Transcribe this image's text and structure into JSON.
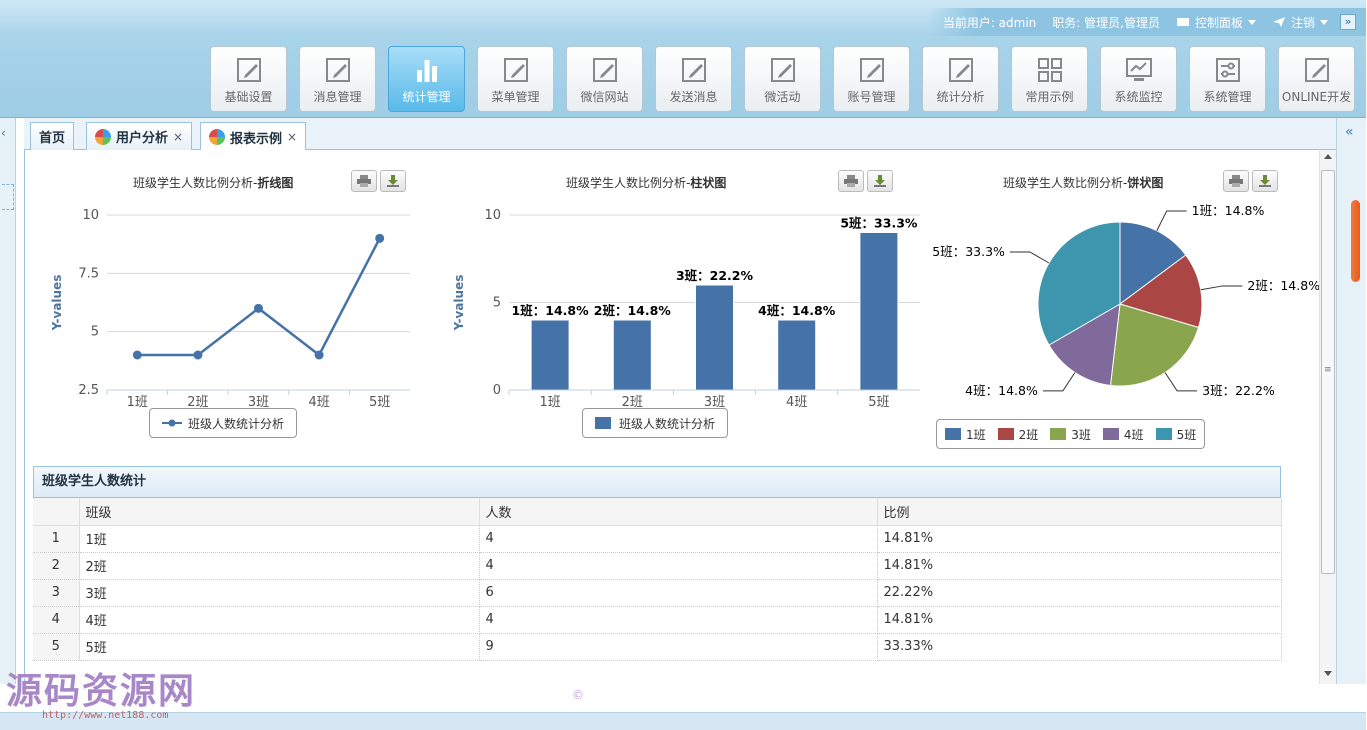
{
  "topbar": {
    "current_user": "当前用户: admin",
    "role": "职务: 管理员,管理员",
    "control_panel": "控制面板",
    "logout": "注销",
    "collapse_glyph": "»"
  },
  "nav": {
    "items": [
      {
        "label": "基础设置",
        "icon": "edit-icon",
        "active": false
      },
      {
        "label": "消息管理",
        "icon": "edit-icon",
        "active": false
      },
      {
        "label": "统计管理",
        "icon": "bar-chart-icon",
        "active": true
      },
      {
        "label": "菜单管理",
        "icon": "edit-icon",
        "active": false
      },
      {
        "label": "微信网站",
        "icon": "edit-icon",
        "active": false
      },
      {
        "label": "发送消息",
        "icon": "edit-icon",
        "active": false
      },
      {
        "label": "微活动",
        "icon": "edit-icon",
        "active": false
      },
      {
        "label": "账号管理",
        "icon": "edit-icon",
        "active": false
      },
      {
        "label": "统计分析",
        "icon": "edit-icon",
        "active": false
      },
      {
        "label": "常用示例",
        "icon": "grid-icon",
        "active": false
      },
      {
        "label": "系统监控",
        "icon": "monitor-icon",
        "active": false
      },
      {
        "label": "系统管理",
        "icon": "settings-panel-icon",
        "active": false
      },
      {
        "label": "ONLINE开发",
        "icon": "edit-icon",
        "active": false
      }
    ]
  },
  "tabs": [
    {
      "label": "首页",
      "closable": false,
      "active": false
    },
    {
      "label": "用户分析",
      "closable": true,
      "active": false
    },
    {
      "label": "报表示例",
      "closable": true,
      "active": true
    }
  ],
  "colors": {
    "series_blue": "#4572A7",
    "pie": [
      "#4572A7",
      "#AA4643",
      "#89A54E",
      "#80699B",
      "#3D96AE"
    ]
  },
  "charts": {
    "line": {
      "title_prefix": "班级学生人数比例分析-",
      "title_type": "折线图"
    },
    "bar": {
      "title_prefix": "班级学生人数比例分析-",
      "title_type": "柱状图"
    },
    "pie": {
      "title_prefix": "班级学生人数比例分析-",
      "title_type": "饼状图"
    }
  },
  "chart_data": [
    {
      "type": "line",
      "title": "班级学生人数比例分析-折线图",
      "categories": [
        "1班",
        "2班",
        "3班",
        "4班",
        "5班"
      ],
      "series": [
        {
          "name": "班级人数统计分析",
          "values": [
            4,
            4,
            6,
            4,
            9
          ]
        }
      ],
      "ylabel": "Y-values",
      "yticks": [
        "2.5",
        "5",
        "7.5",
        "10"
      ],
      "ylim": [
        2.5,
        10
      ],
      "grid": true,
      "legend": "bottom-center"
    },
    {
      "type": "bar",
      "title": "班级学生人数比例分析-柱状图",
      "categories": [
        "1班",
        "2班",
        "3班",
        "4班",
        "5班"
      ],
      "series": [
        {
          "name": "班级人数统计分析",
          "values": [
            4,
            4,
            6,
            4,
            9
          ]
        }
      ],
      "data_labels": [
        "1班：14.8%",
        "2班：14.8%",
        "3班：22.2%",
        "4班：14.8%",
        "5班：33.3%"
      ],
      "ylabel": "Y-values",
      "yticks": [
        "0",
        "5",
        "10"
      ],
      "ylim": [
        0,
        10
      ],
      "grid": true,
      "legend": "bottom-center"
    },
    {
      "type": "pie",
      "title": "班级学生人数比例分析-饼状图",
      "categories": [
        "1班",
        "2班",
        "3班",
        "4班",
        "5班"
      ],
      "values": [
        14.8,
        14.8,
        22.2,
        14.8,
        33.3
      ],
      "data_labels": [
        "1班：14.8%",
        "2班：14.8%",
        "3班：22.2%",
        "4班：14.8%",
        "5班：33.3%"
      ],
      "legend": "bottom-center"
    }
  ],
  "table": {
    "title": "班级学生人数统计",
    "columns": [
      "班级",
      "人数",
      "比例"
    ],
    "rows": [
      {
        "n": "1",
        "cls": "1班",
        "count": "4",
        "ratio": "14.81%"
      },
      {
        "n": "2",
        "cls": "2班",
        "count": "4",
        "ratio": "14.81%"
      },
      {
        "n": "3",
        "cls": "3班",
        "count": "6",
        "ratio": "22.22%"
      },
      {
        "n": "4",
        "cls": "4班",
        "count": "4",
        "ratio": "14.81%"
      },
      {
        "n": "5",
        "cls": "5班",
        "count": "9",
        "ratio": "33.33%"
      }
    ]
  },
  "footer": {
    "copyright": "©"
  },
  "watermark": {
    "text": "源码资源网",
    "url": "http://www.net188.com"
  }
}
